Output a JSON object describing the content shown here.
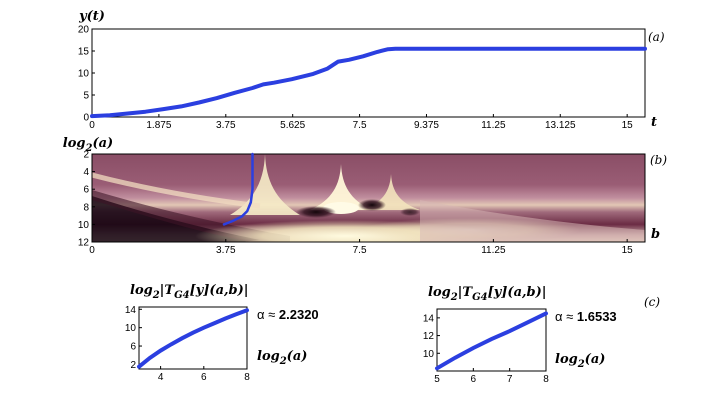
{
  "chart_data": [
    {
      "id": "a",
      "type": "line",
      "panel_label": "(a)",
      "ylabel": "y(t)",
      "xlabel": "t",
      "xlim": [
        0,
        15.5
      ],
      "ylim": [
        0,
        20
      ],
      "xticks": [
        "0",
        "1.875",
        "3.75",
        "5.625",
        "7.5",
        "9.375",
        "11.25",
        "13.125",
        "15"
      ],
      "xtick_values": [
        0,
        1.875,
        3.75,
        5.625,
        7.5,
        9.375,
        11.25,
        13.125,
        15
      ],
      "yticks": [
        "0",
        "5",
        "10",
        "15",
        "20"
      ],
      "ytick_values": [
        0,
        5,
        10,
        15,
        20
      ],
      "color": "#2b3fe0",
      "series": [
        {
          "x": [
            0,
            0.5,
            1,
            1.5,
            2,
            2.5,
            3,
            3.5,
            4,
            4.5,
            4.8,
            5.1,
            5.6,
            6.2,
            6.6,
            6.9,
            7.2,
            7.6,
            8.0,
            8.3,
            8.5,
            9.4,
            11.25,
            13.1,
            15.5
          ],
          "y": [
            0.2,
            0.4,
            0.8,
            1.2,
            1.8,
            2.4,
            3.3,
            4.3,
            5.5,
            6.6,
            7.4,
            7.8,
            8.6,
            9.8,
            11.0,
            12.6,
            13.0,
            13.8,
            14.8,
            15.4,
            15.5,
            15.5,
            15.5,
            15.5,
            15.5
          ]
        }
      ]
    },
    {
      "id": "b",
      "type": "heatmap",
      "panel_label": "(b)",
      "ylabel": "log2(a)",
      "ylabel_base": "log",
      "ylabel_sub": "2",
      "ylabel_rest": "(a)",
      "xlabel": "b",
      "xlim": [
        0,
        15.5
      ],
      "ylim": [
        2,
        12
      ],
      "xticks": [
        "0",
        "3.75",
        "7.5",
        "11.25",
        "15"
      ],
      "xtick_values": [
        0,
        3.75,
        7.5,
        11.25,
        15
      ],
      "yticks": [
        "2",
        "4",
        "6",
        "8",
        "10",
        "12"
      ],
      "ytick_values": [
        2,
        4,
        6,
        8,
        10,
        12
      ],
      "colormap": [
        "#1a0a10",
        "#5c2238",
        "#8e4a66",
        "#b98aa0",
        "#e7d5b8",
        "#fffbe0"
      ],
      "overlay_color": "#2b3fe0",
      "overlay": {
        "x": [
          4.5,
          4.5,
          4.45,
          4.35,
          4.2,
          3.95,
          3.7
        ],
        "y": [
          2,
          6,
          7.5,
          8.5,
          9.1,
          9.6,
          10.0
        ]
      }
    },
    {
      "id": "c1",
      "type": "line",
      "ylabel": "log2|TG4[y](a,b)|",
      "xlabel": "log2(a)",
      "alpha_label": "α ≈",
      "alpha_value": "2.2320",
      "xlim": [
        3,
        8
      ],
      "ylim": [
        1,
        14.5
      ],
      "xticks": [
        "4",
        "6",
        "8"
      ],
      "xtick_values": [
        4,
        6,
        8
      ],
      "yticks": [
        "2",
        "6",
        "10",
        "14"
      ],
      "ytick_values": [
        2,
        6,
        10,
        14
      ],
      "color": "#2b3fe0",
      "series": [
        {
          "x": [
            3,
            3.5,
            4,
            4.5,
            5,
            5.5,
            6,
            6.5,
            7,
            7.5,
            8
          ],
          "y": [
            1.5,
            3.4,
            5.0,
            6.4,
            7.7,
            8.9,
            10.0,
            11.0,
            12.0,
            12.9,
            13.8
          ]
        }
      ]
    },
    {
      "id": "c2",
      "type": "line",
      "panel_label": "(c)",
      "ylabel": "log2|TG4[y](a,b)|",
      "xlabel": "log2(a)",
      "alpha_label": "α ≈",
      "alpha_value": "1.6533",
      "xlim": [
        5,
        8
      ],
      "ylim": [
        8,
        15
      ],
      "xticks": [
        "5",
        "6",
        "7",
        "8"
      ],
      "xtick_values": [
        5,
        6,
        7,
        8
      ],
      "yticks": [
        "10",
        "12",
        "14"
      ],
      "ytick_values": [
        10,
        12,
        14
      ],
      "color": "#2b3fe0",
      "series": [
        {
          "x": [
            5,
            5.5,
            6,
            6.5,
            7,
            7.5,
            8
          ],
          "y": [
            8.3,
            9.5,
            10.6,
            11.6,
            12.5,
            13.5,
            14.5
          ]
        }
      ]
    }
  ]
}
